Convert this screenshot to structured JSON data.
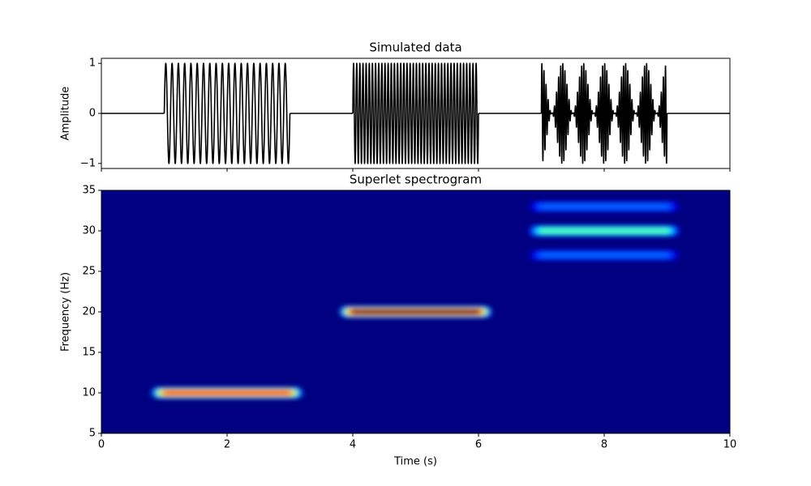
{
  "chart_data": [
    {
      "type": "line",
      "title": "Simulated data",
      "ylabel": "Amplitude",
      "color": "#000000",
      "xlim": [
        0,
        10
      ],
      "xticks": [
        0,
        2,
        4,
        6,
        8,
        10
      ],
      "ylim": [
        -1.1,
        1.1
      ],
      "yticks": [
        {
          "value": -1,
          "label": "−1"
        },
        0,
        1
      ],
      "bursts": [
        {
          "start": 1,
          "end": 3,
          "components": [
            {
              "frequency": 10,
              "amplitude": 1
            }
          ]
        },
        {
          "start": 4,
          "end": 6,
          "components": [
            {
              "frequency": 20,
              "amplitude": 1
            }
          ]
        },
        {
          "start": 7,
          "end": 9,
          "components": [
            {
              "frequency": 27,
              "amplitude": 0.25
            },
            {
              "frequency": 30,
              "amplitude": 0.5
            },
            {
              "frequency": 33,
              "amplitude": 0.25
            }
          ]
        }
      ]
    },
    {
      "type": "heatmap",
      "title": "Superlet spectrogram",
      "xlabel": "Time (s)",
      "ylabel": "Frequency (Hz)",
      "colormap": "jet",
      "xlim": [
        0,
        10
      ],
      "xticks": [
        0,
        2,
        4,
        6,
        8,
        10
      ],
      "ylim": [
        5,
        35
      ],
      "yticks": [
        5,
        10,
        15,
        20,
        25,
        30,
        35
      ],
      "bands": [
        {
          "start": 1,
          "end": 3,
          "frequency": 10,
          "power": 0.8
        },
        {
          "start": 4,
          "end": 6,
          "frequency": 20,
          "power": 1
        },
        {
          "start": 7,
          "end": 9,
          "frequency": 27,
          "power": 0.22
        },
        {
          "start": 7,
          "end": 9,
          "frequency": 30,
          "power": 0.45
        },
        {
          "start": 7,
          "end": 9,
          "frequency": 33,
          "power": 0.22
        }
      ]
    }
  ]
}
